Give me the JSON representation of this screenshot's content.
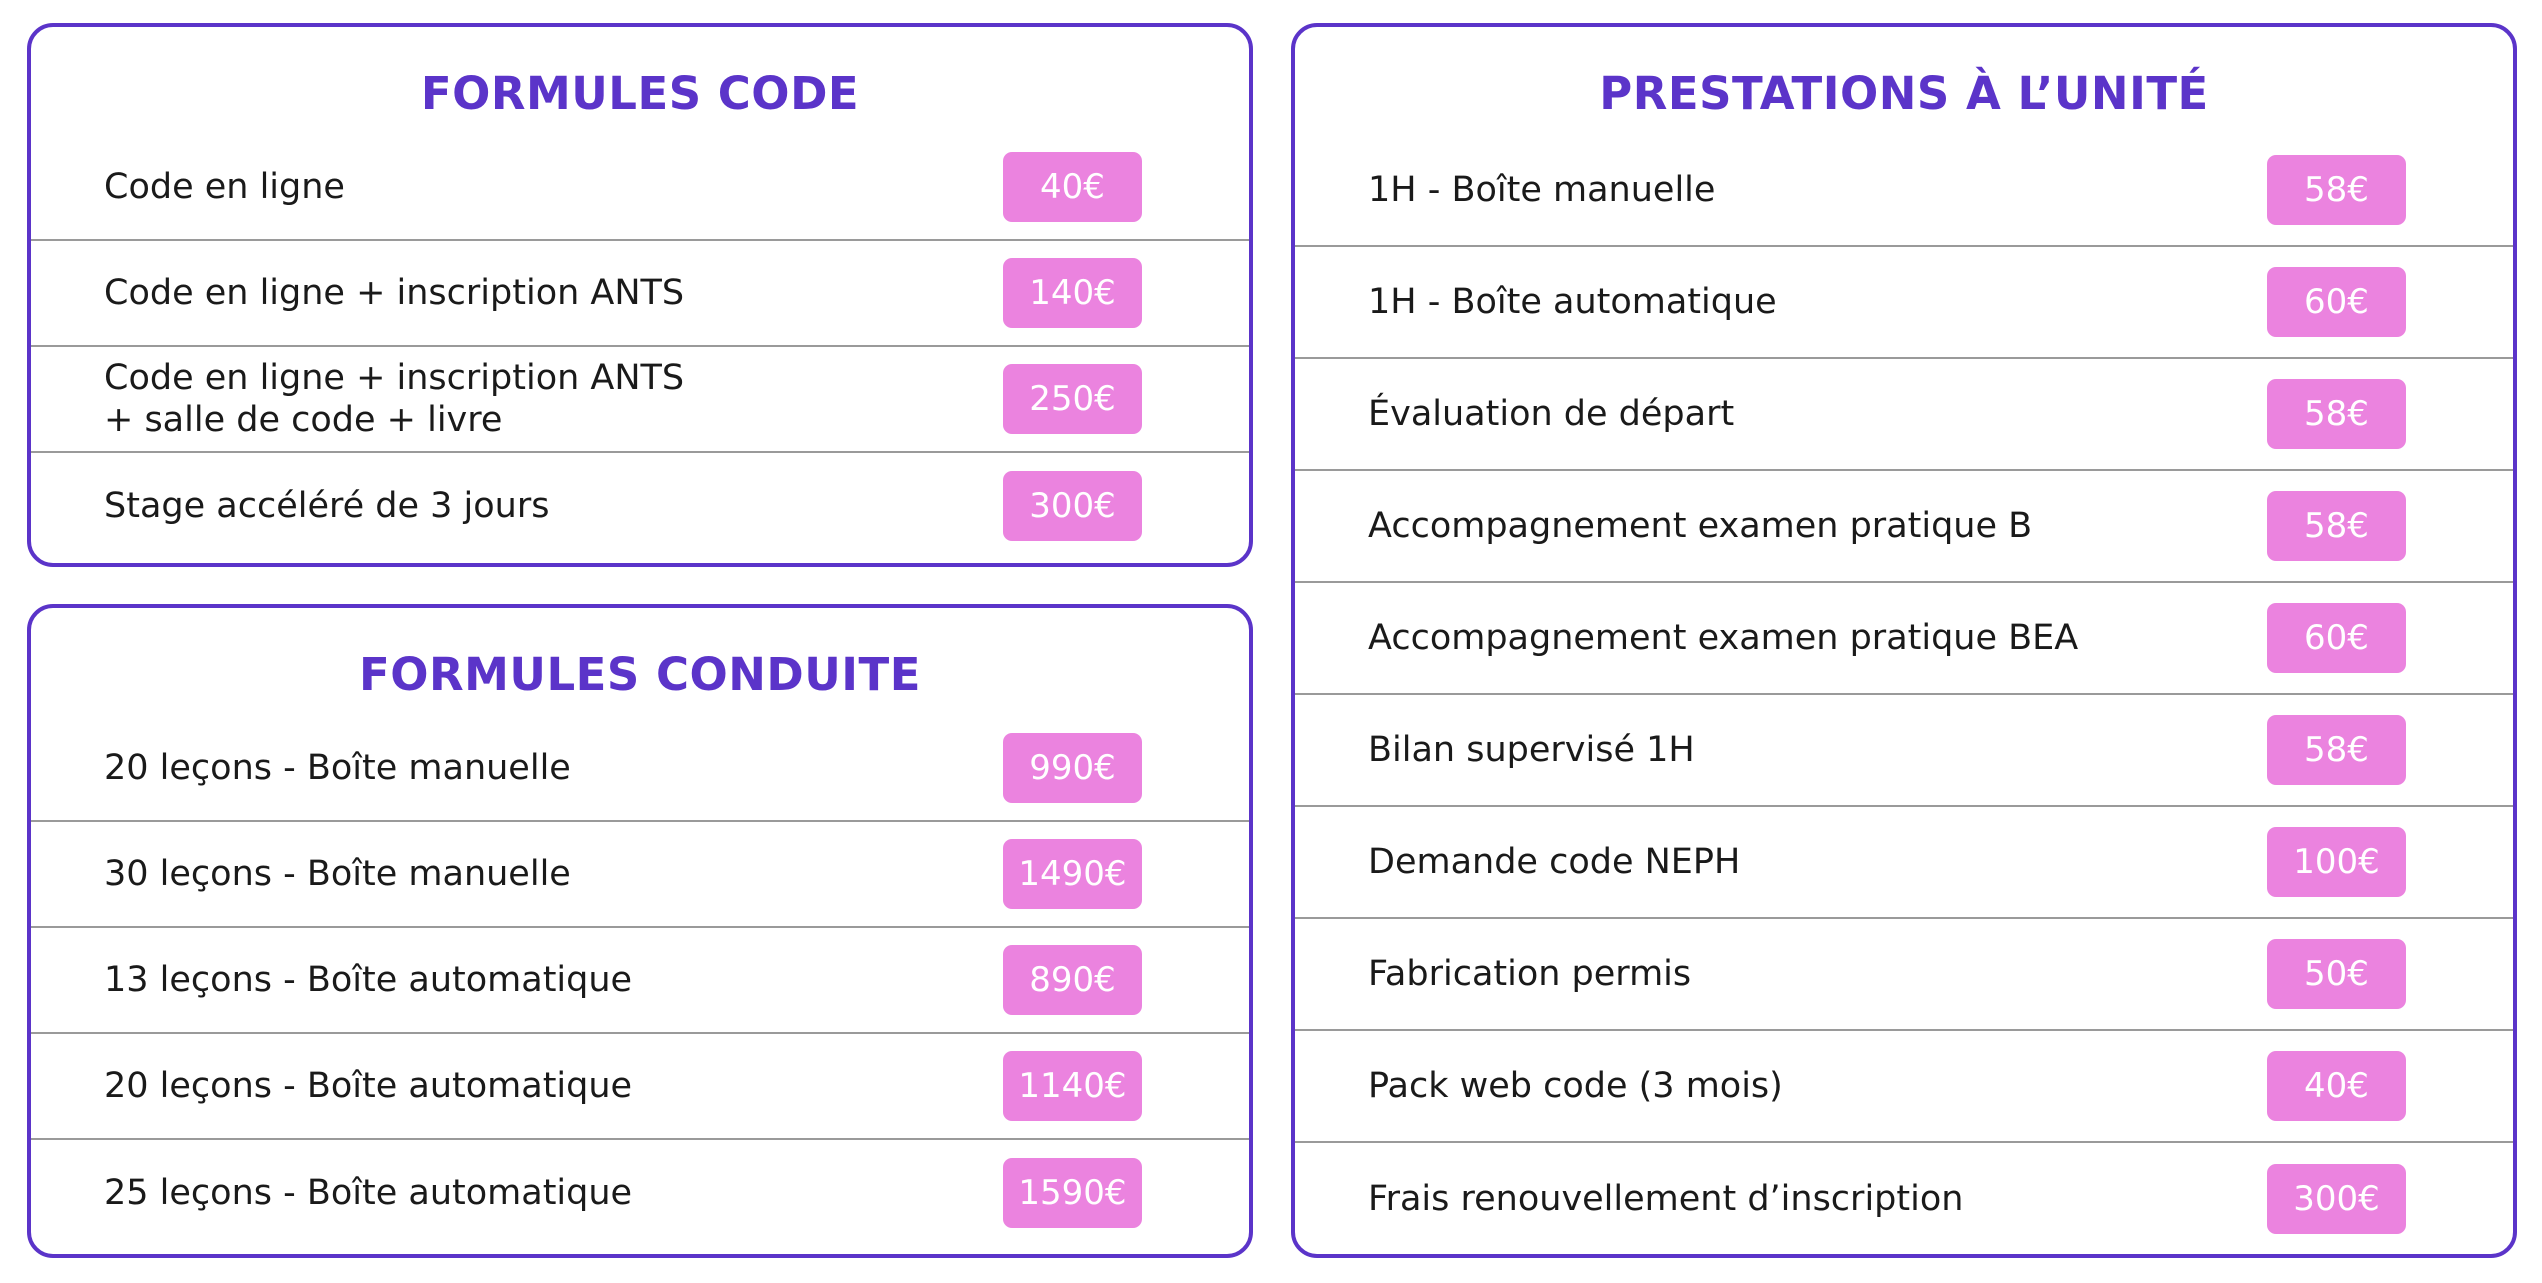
{
  "colors": {
    "accent": "#5b34c9",
    "badge": "#eb83df",
    "divider": "#9a9a9a"
  },
  "formules_code": {
    "title": "FORMULES CODE",
    "items": [
      {
        "label": "Code en ligne",
        "label_line2": "",
        "price": "40€"
      },
      {
        "label": "Code en ligne + inscription ANTS",
        "label_line2": "",
        "price": "140€"
      },
      {
        "label": "Code en ligne + inscription ANTS",
        "label_line2": "+ salle de code + livre",
        "price": "250€"
      },
      {
        "label": "Stage accéléré de 3 jours",
        "label_line2": "",
        "price": "300€"
      }
    ]
  },
  "formules_conduite": {
    "title": "FORMULES CONDUITE",
    "items": [
      {
        "label": "20 leçons - Boîte manuelle",
        "price": "990€"
      },
      {
        "label": "30 leçons - Boîte manuelle",
        "price": "1490€"
      },
      {
        "label": "13 leçons - Boîte automatique",
        "price": "890€"
      },
      {
        "label": "20 leçons - Boîte automatique",
        "price": "1140€"
      },
      {
        "label": "25 leçons - Boîte automatique",
        "price": "1590€"
      }
    ]
  },
  "prestations_unite": {
    "title": "PRESTATIONS À L’UNITÉ",
    "items": [
      {
        "label": "1H - Boîte manuelle",
        "price": "58€"
      },
      {
        "label": "1H - Boîte automatique",
        "price": "60€"
      },
      {
        "label": "Évaluation de départ",
        "price": "58€"
      },
      {
        "label": "Accompagnement examen pratique B",
        "price": "58€"
      },
      {
        "label": "Accompagnement examen pratique BEA",
        "price": "60€"
      },
      {
        "label": "Bilan supervisé 1H",
        "price": "58€"
      },
      {
        "label": "Demande code NEPH",
        "price": "100€"
      },
      {
        "label": "Fabrication permis",
        "price": "50€"
      },
      {
        "label": "Pack web code (3 mois)",
        "price": "40€"
      },
      {
        "label": "Frais renouvellement d’inscription",
        "price": "300€"
      }
    ]
  }
}
